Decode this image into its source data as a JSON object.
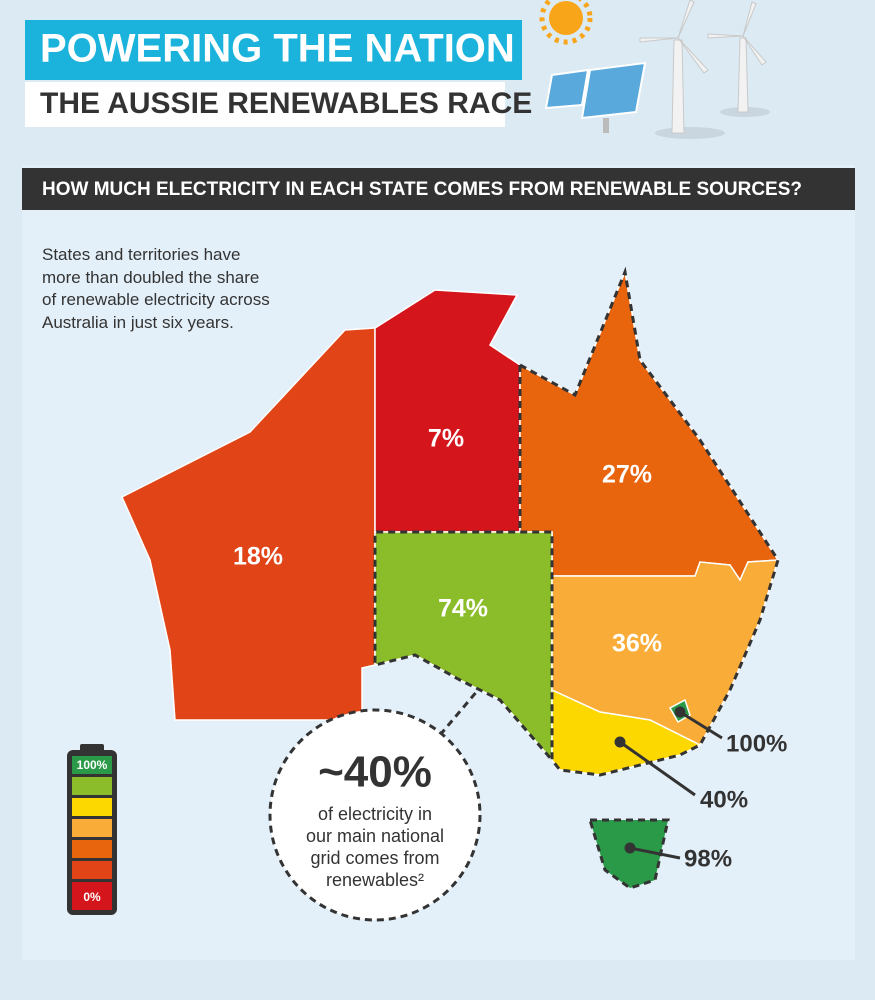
{
  "header": {
    "title": "POWERING THE NATION",
    "subtitle": "THE AUSSIE RENEWABLES RACE"
  },
  "question": "HOW MUCH ELECTRICITY IN EACH STATE COMES FROM RENEWABLE SOURCES?",
  "intro": [
    "States and territories have",
    "more than doubled the share",
    "of renewable electricity across",
    "Australia in just six years."
  ],
  "regions": [
    "18%",
    "7%",
    "27%",
    "74%",
    "36%",
    "100%",
    "40%",
    "98%"
  ],
  "callout": {
    "headline": "~40%",
    "lines": [
      "of electricity in",
      "our main national",
      "grid comes from",
      "renewables²"
    ]
  },
  "battery": {
    "top": "100%",
    "bottom": "0%"
  }
}
